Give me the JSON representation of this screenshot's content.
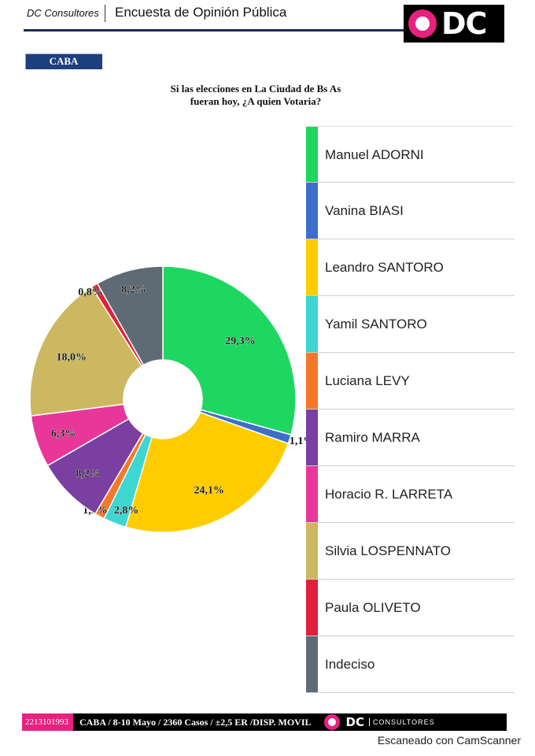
{
  "header": {
    "brand": "DC Consultores",
    "title": "Encuesta de Opinión Pública",
    "logo_text": "DC"
  },
  "region_badge": "CABA",
  "question": {
    "line1": "Si las elecciones en La Ciudad de Bs As",
    "line2": "fueran hoy, ¿A quien Votaria?"
  },
  "chart_data": {
    "type": "pie",
    "variant": "donut",
    "title": "",
    "slices": [
      {
        "label": "Manuel ADORNI",
        "value": 29.3,
        "display": "29,3%",
        "color": "#1ed760"
      },
      {
        "label": "Vanina BIASI",
        "value": 1.1,
        "display": "1,1%",
        "color": "#3b6fc9"
      },
      {
        "label": "Leandro SANTORO",
        "value": 24.1,
        "display": "24,1%",
        "color": "#ffcc00"
      },
      {
        "label": "Yamil SANTORO",
        "value": 2.8,
        "display": "2,8%",
        "color": "#3dd6d0"
      },
      {
        "label": "Luciana LEVY",
        "value": 1.2,
        "display": "1,2%",
        "color": "#f5782a"
      },
      {
        "label": "Ramiro MARRA",
        "value": 8.2,
        "display": "8,2%",
        "color": "#7a3fa0"
      },
      {
        "label": "Horacio R. LARRETA",
        "value": 6.3,
        "display": "6,3%",
        "color": "#e8369a"
      },
      {
        "label": "Silvia LOSPENNATO",
        "value": 18.0,
        "display": "18,0%",
        "color": "#cbb860"
      },
      {
        "label": "Paula OLIVETO",
        "value": 0.8,
        "display": "0,8%",
        "color": "#e0203a"
      },
      {
        "label": "Indeciso",
        "value": 8.2,
        "display": "8,2%",
        "color": "#5f6b74"
      }
    ],
    "legend_position": "right"
  },
  "footer": {
    "phone": "2213101993",
    "info": "CABA / 8-10 Mayo / 2360 Casos / ±2,5 ER /DISP. MOVIL",
    "logo_text": "DC",
    "consultores": "CONSULTORES"
  },
  "scan_note": "Escaneado con CamScanner"
}
